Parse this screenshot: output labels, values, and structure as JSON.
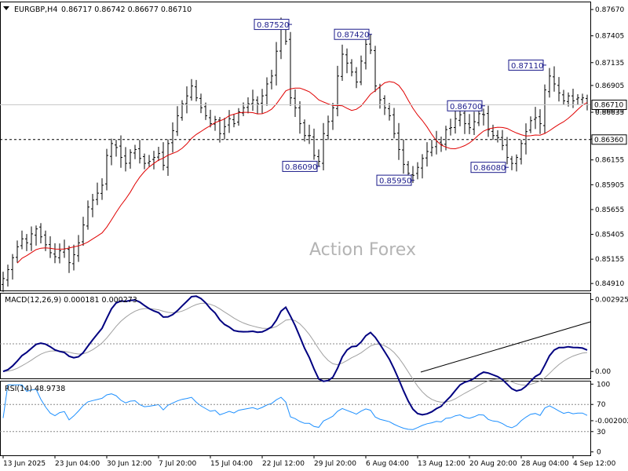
{
  "header": {
    "symbol_info": "EURGBP,H4",
    "quotes": "0.86717 0.86742 0.86677 0.86710"
  },
  "watermark": "Action Forex",
  "colors": {
    "candles": "#000000",
    "ma": "#e00000",
    "macd_main": "#000080",
    "macd_signal": "#a0a0a0",
    "rsi": "#1e90ff",
    "grid": "#c8c8c8"
  },
  "chart_data": [
    {
      "type": "candlestick",
      "panel": "price",
      "ylim": [
        0.8484,
        0.8775
      ],
      "y_ticks": [
        "0.87670",
        "0.87405",
        "0.87135",
        "0.86905",
        "0.86635",
        "0.86365",
        "0.86155",
        "0.85905",
        "0.85655",
        "0.85405",
        "0.85155",
        "0.84910"
      ],
      "y_tick_values": [
        0.8767,
        0.87405,
        0.87135,
        0.86905,
        0.86635,
        0.86365,
        0.86155,
        0.85905,
        0.85655,
        0.85405,
        0.85155,
        0.8491
      ],
      "x_ticks": [
        "13 Jun 2025",
        "23 Jun 04:00",
        "30 Jun 12:00",
        "7 Jul 20:00",
        "15 Jul 04:00",
        "22 Jul 12:00",
        "29 Jul 20:00",
        "6 Aug 04:00",
        "13 Aug 12:00",
        "20 Aug 20:00",
        "28 Aug 04:00",
        "4 Sep 12:00"
      ],
      "x_tick_index": [
        0,
        11,
        22,
        33,
        44,
        55,
        66,
        77,
        88,
        99,
        110,
        121
      ],
      "current_price_label": "0.86710",
      "current_price": 0.8671,
      "level_label": "0.86360",
      "level": 0.8636,
      "ma_label": "0.86655",
      "ma_value": 0.86655,
      "annotations": [
        {
          "text": "0.87520",
          "value": 0.8752,
          "index": 61,
          "side": "left"
        },
        {
          "text": "0.87420",
          "value": 0.8742,
          "index": 78,
          "side": "left"
        },
        {
          "text": "0.86090",
          "value": 0.8609,
          "index": 67,
          "side": "left"
        },
        {
          "text": "0.85950",
          "value": 0.8595,
          "index": 87,
          "side": "left"
        },
        {
          "text": "0.86700",
          "value": 0.867,
          "index": 102,
          "side": "left"
        },
        {
          "text": "0.86080",
          "value": 0.8608,
          "index": 107,
          "side": "left"
        },
        {
          "text": "0.87110",
          "value": 0.8711,
          "index": 115,
          "side": "left"
        }
      ],
      "close": [
        0.8496,
        0.8505,
        0.8517,
        0.8528,
        0.8536,
        0.8532,
        0.8541,
        0.8546,
        0.8538,
        0.853,
        0.8522,
        0.8518,
        0.8524,
        0.8526,
        0.8512,
        0.852,
        0.8532,
        0.855,
        0.8568,
        0.8575,
        0.8582,
        0.859,
        0.862,
        0.8632,
        0.8628,
        0.8618,
        0.8612,
        0.8623,
        0.8626,
        0.8617,
        0.8612,
        0.8614,
        0.8618,
        0.8622,
        0.861,
        0.8632,
        0.8645,
        0.866,
        0.8672,
        0.868,
        0.869,
        0.8678,
        0.8668,
        0.866,
        0.8652,
        0.8656,
        0.8642,
        0.8649,
        0.8657,
        0.8652,
        0.8664,
        0.8668,
        0.8672,
        0.8676,
        0.8672,
        0.868,
        0.8692,
        0.87,
        0.8725,
        0.8748,
        0.8735,
        0.8678,
        0.8668,
        0.8652,
        0.864,
        0.864,
        0.862,
        0.8614,
        0.8642,
        0.8654,
        0.8668,
        0.87,
        0.8722,
        0.8713,
        0.8704,
        0.8694,
        0.8715,
        0.8732,
        0.8726,
        0.869,
        0.8676,
        0.8668,
        0.866,
        0.8642,
        0.8626,
        0.8611,
        0.8602,
        0.86,
        0.8608,
        0.8617,
        0.8624,
        0.8628,
        0.8634,
        0.8631,
        0.8646,
        0.8648,
        0.8657,
        0.8661,
        0.8652,
        0.8648,
        0.8654,
        0.8662,
        0.8661,
        0.8646,
        0.864,
        0.8638,
        0.863,
        0.8618,
        0.8612,
        0.8618,
        0.8632,
        0.8644,
        0.8655,
        0.8658,
        0.8652,
        0.8686,
        0.87,
        0.8692,
        0.8683,
        0.8675,
        0.868,
        0.8675,
        0.8678,
        0.8678,
        0.8671
      ]
    },
    {
      "type": "line",
      "panel": "macd",
      "label": "MACD(12,26,9) 0.000181 0.000273",
      "ylim": [
        -0.00028,
        0.0032
      ],
      "y_ticks": [
        "0.002925",
        "0.00",
        "-0.002002"
      ],
      "y_tick_values": [
        0.002925,
        0.0,
        -0.002002
      ]
    },
    {
      "type": "line",
      "panel": "rsi",
      "label": "RSI(14) 48.9738",
      "ylim": [
        -5,
        105
      ],
      "y_ticks": [
        "100",
        "70",
        "30",
        "0"
      ],
      "y_tick_values": [
        100,
        70,
        30,
        0
      ],
      "levels": [
        70,
        30
      ]
    }
  ]
}
